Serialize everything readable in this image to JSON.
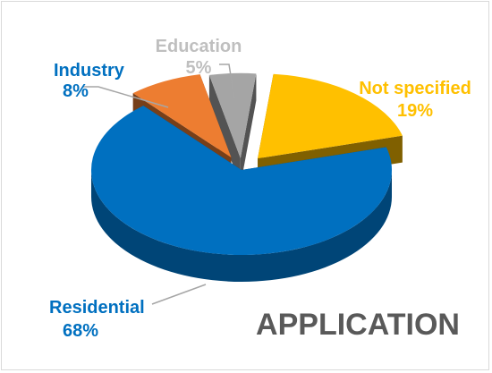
{
  "chart_data": {
    "type": "pie",
    "title": "APPLICATION",
    "style": "3d-exploded",
    "slices": [
      {
        "label": "Not specified",
        "value": 19,
        "value_label": "19%",
        "color": "#FFC000"
      },
      {
        "label": "Residential",
        "value": 68,
        "value_label": "68%",
        "color": "#0070C0"
      },
      {
        "label": "Industry",
        "value": 8,
        "value_label": "8%",
        "color": "#ED7D31"
      },
      {
        "label": "Education",
        "value": 5,
        "value_label": "5%",
        "color": "#A5A5A5"
      }
    ]
  }
}
